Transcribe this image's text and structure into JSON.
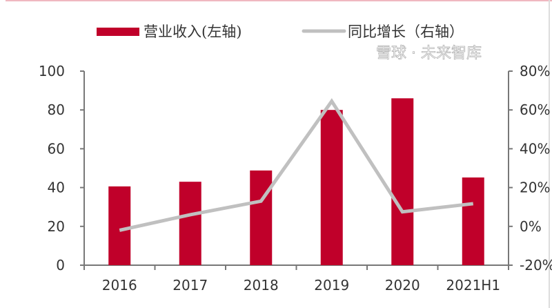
{
  "chart_data": {
    "type": "bar+line",
    "categories": [
      "2016",
      "2017",
      "2018",
      "2019",
      "2020",
      "2021H1"
    ],
    "series": [
      {
        "name": "营业收入(左轴)",
        "type": "bar",
        "axis": "left",
        "color": "#c0002a",
        "values": [
          40.6,
          43,
          48.8,
          80,
          86,
          45.2
        ]
      },
      {
        "name": "同比增长（右轴）",
        "type": "line",
        "axis": "right",
        "color": "#c0c0c0",
        "values": [
          -2,
          6,
          13,
          64.5,
          7.5,
          11.7
        ]
      }
    ],
    "left_axis": {
      "ylim": [
        0,
        100
      ],
      "ticks": [
        "0",
        "20",
        "40",
        "60",
        "80",
        "100"
      ]
    },
    "right_axis": {
      "ylim": [
        -20,
        80
      ],
      "ticks": [
        "-20%",
        "0%",
        "20%",
        "40%",
        "60%",
        "80%"
      ]
    },
    "grid": false,
    "legend_position": "top"
  },
  "watermark": "雪球 · 未来智库"
}
